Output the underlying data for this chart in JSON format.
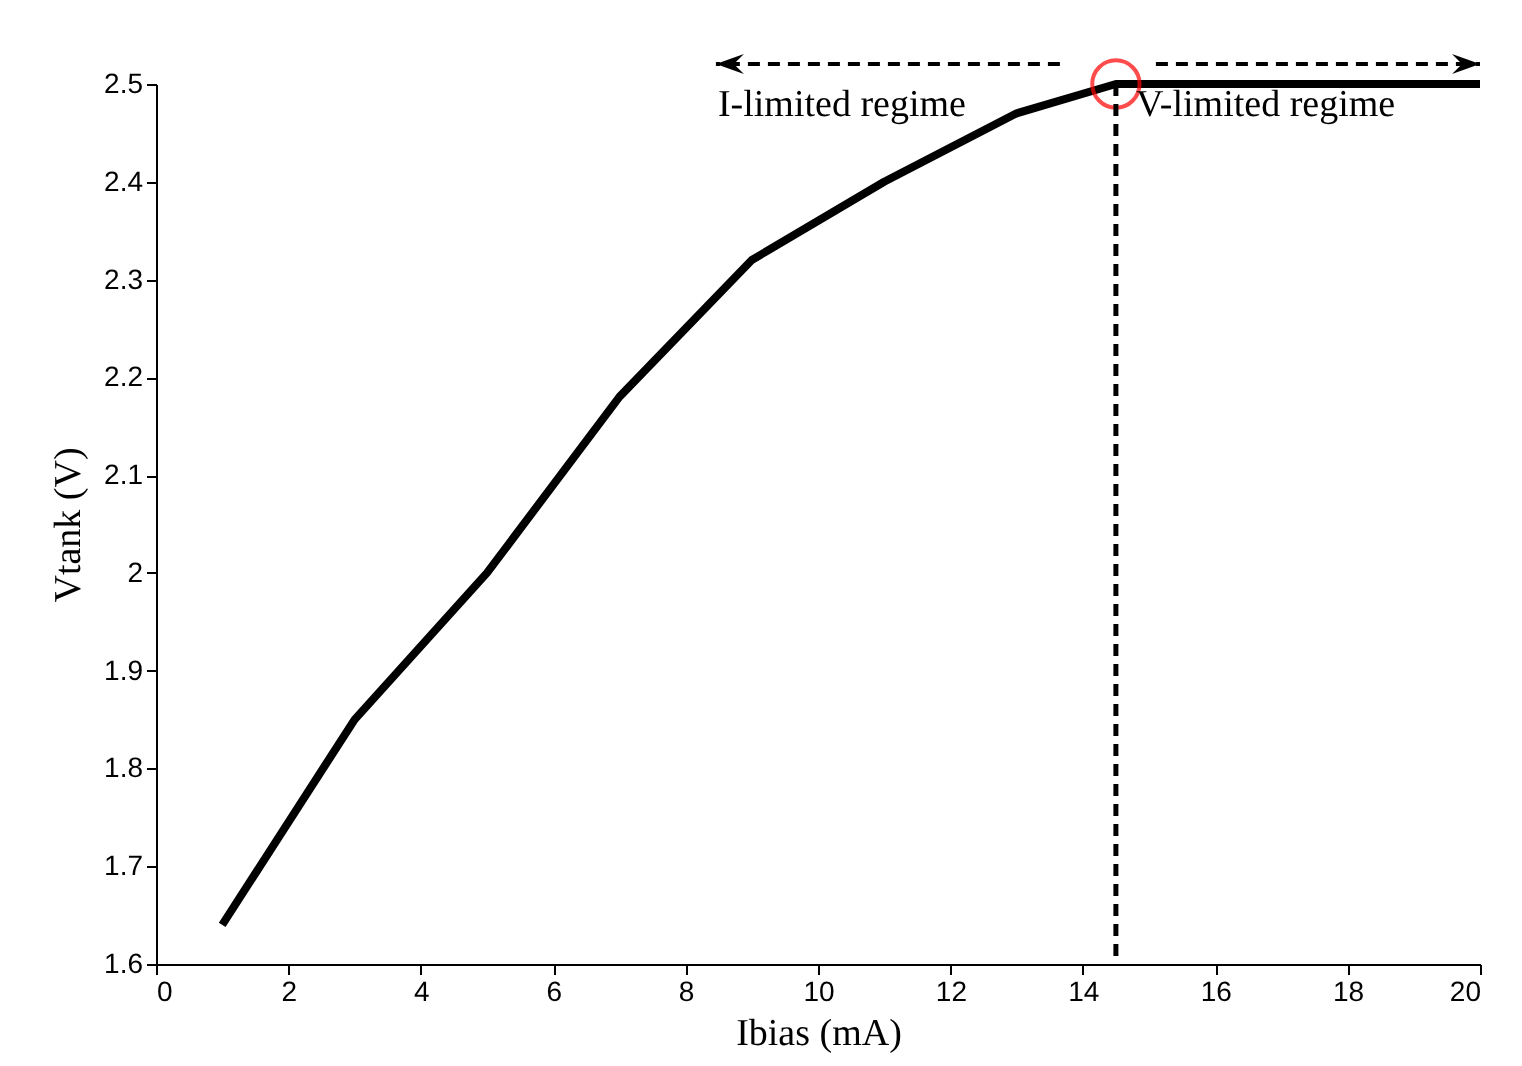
{
  "chart_data": {
    "type": "line",
    "xlabel": "Ibias (mA)",
    "ylabel": "Vtank (V)",
    "x": [
      1,
      3,
      5,
      7,
      9,
      11,
      13,
      14.5,
      20
    ],
    "series": [
      {
        "type": "line",
        "color": "#000000",
        "marker": "none",
        "values": [
          1.64,
          1.85,
          2.0,
          2.18,
          2.32,
          2.4,
          2.47,
          2.5,
          2.5
        ]
      },
      {
        "type": "scatter",
        "x": [
          14.5
        ],
        "values": [
          2.5
        ],
        "color": "#ff0000",
        "marker": "circle"
      }
    ],
    "xlim": [
      0,
      20
    ],
    "xticks": [
      0,
      2,
      4,
      6,
      8,
      10,
      12,
      14,
      16,
      18,
      20
    ],
    "ylim": [
      1.6,
      2.5
    ],
    "yticks": [
      1.6,
      1.7,
      1.8,
      1.9,
      2,
      2.1,
      2.2,
      2.3,
      2.4,
      2.5
    ],
    "ref_lines": [
      {
        "axis": "x",
        "value": 14.5,
        "line_style": "dashed",
        "color": "#000000"
      }
    ],
    "annotations": [
      "I-limited regime",
      "V-limited regime"
    ],
    "grid": false
  }
}
